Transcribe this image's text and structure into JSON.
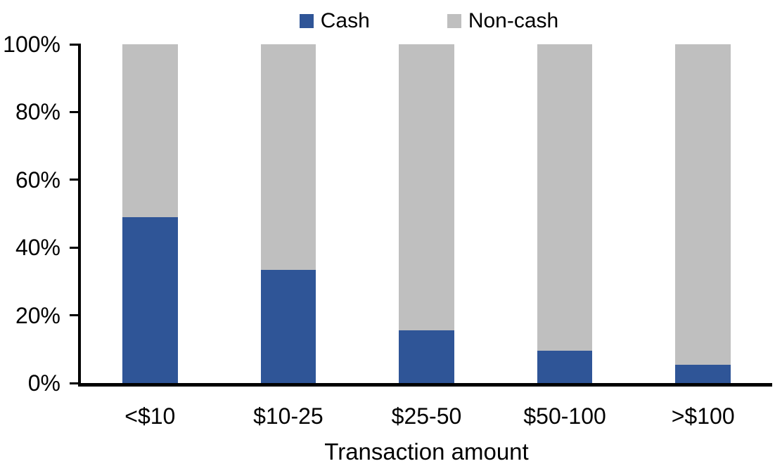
{
  "chart_data": {
    "type": "bar",
    "stacked": true,
    "title": "",
    "xlabel": "Transaction amount",
    "ylabel": "",
    "categories": [
      "<$10",
      "$10-25",
      "$25-50",
      "$50-100",
      ">$100"
    ],
    "series": [
      {
        "name": "Cash",
        "color": "#2F5597",
        "values": [
          49,
          33.5,
          15.5,
          9.5,
          5.5
        ]
      },
      {
        "name": "Non-cash",
        "color": "#BFBFBF",
        "values": [
          51,
          66.5,
          84.5,
          90.5,
          94.5
        ]
      }
    ],
    "ylim": [
      0,
      100
    ],
    "ytick_labels": [
      "0%",
      "20%",
      "40%",
      "60%",
      "80%",
      "100%"
    ],
    "legend_position": "top",
    "grid": false,
    "bar_gap_ratio": 1.5,
    "colors": {
      "axis": "#000000",
      "text": "#000000",
      "background": "#FFFFFF"
    }
  }
}
